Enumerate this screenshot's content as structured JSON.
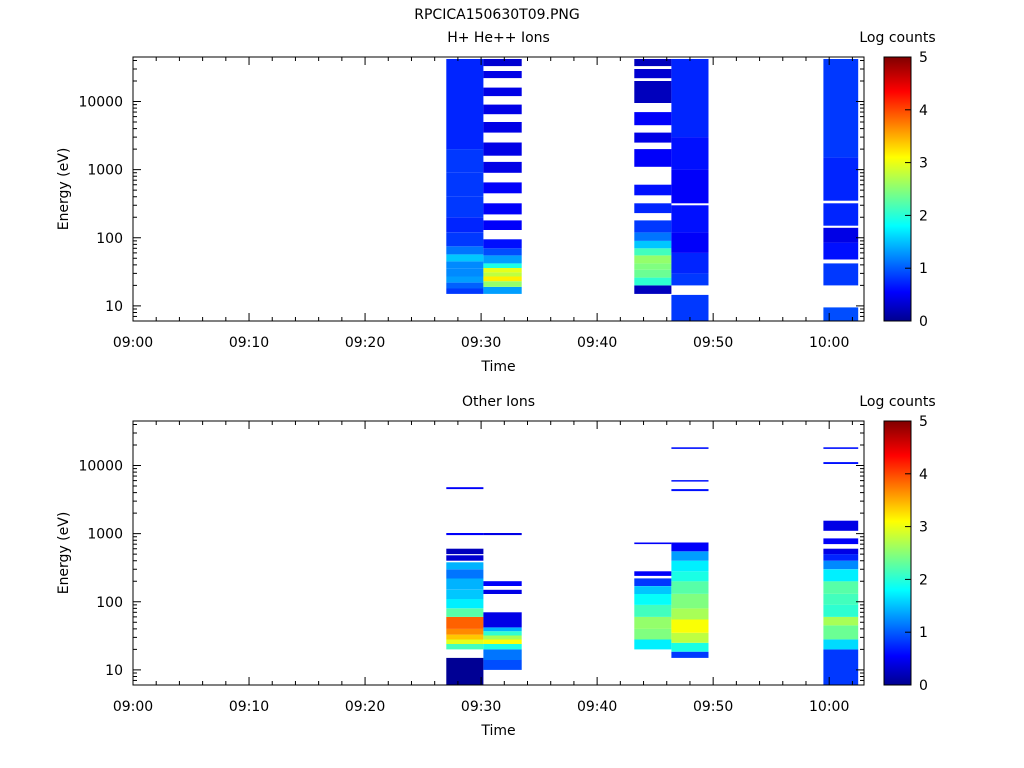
{
  "page_title": "RPCICA150630T09.PNG",
  "chart_data": [
    {
      "type": "heatmap",
      "title": "H+ He++ Ions",
      "xlabel": "Time",
      "ylabel": "Energy (eV)",
      "x_ticks": [
        "09:00",
        "09:10",
        "09:20",
        "09:30",
        "09:40",
        "09:50",
        "10:00"
      ],
      "x_range_minutes": [
        0,
        63
      ],
      "y_scale": "log",
      "y_ticks": [
        "10",
        "100",
        "1000",
        "10000"
      ],
      "y_range": [
        6,
        45000
      ],
      "colorbar": {
        "label": "Log counts",
        "range": [
          0,
          5
        ],
        "ticks": [
          "0",
          "1",
          "2",
          "3",
          "4",
          "5"
        ]
      },
      "columns": [
        {
          "t0": 27.0,
          "t1": 30.2,
          "cells": [
            [
              15,
              18,
              0.9
            ],
            [
              18,
              22,
              1.1
            ],
            [
              22,
              27,
              1.4
            ],
            [
              27,
              35,
              1.3
            ],
            [
              35,
              45,
              1.3
            ],
            [
              45,
              57,
              1.6
            ],
            [
              57,
              75,
              1.2
            ],
            [
              75,
              120,
              0.9
            ],
            [
              120,
              200,
              0.8
            ],
            [
              200,
              400,
              0.9
            ],
            [
              400,
              900,
              0.9
            ],
            [
              900,
              2000,
              0.9
            ],
            [
              2000,
              5000,
              0.8
            ],
            [
              5000,
              15000,
              0.8
            ],
            [
              15000,
              42000,
              0.8
            ]
          ]
        },
        {
          "t0": 30.2,
          "t1": 33.5,
          "cells": [
            [
              15,
              19,
              1.4
            ],
            [
              19,
              23,
              2.6
            ],
            [
              23,
              27,
              3.2
            ],
            [
              27,
              31,
              2.8
            ],
            [
              31,
              36,
              3.0
            ],
            [
              36,
              42,
              2.0
            ],
            [
              42,
              55,
              1.4
            ],
            [
              55,
              70,
              1.0
            ],
            [
              70,
              95,
              0.7
            ],
            [
              130,
              180,
              0.6
            ],
            [
              220,
              320,
              0.6
            ],
            [
              450,
              650,
              0.6
            ],
            [
              900,
              1300,
              0.5
            ],
            [
              1600,
              2500,
              0.5
            ],
            [
              3500,
              5000,
              0.5
            ],
            [
              6500,
              9000,
              0.5
            ],
            [
              12000,
              16000,
              0.5
            ],
            [
              22000,
              28000,
              0.5
            ],
            [
              33000,
              42000,
              0.4
            ]
          ]
        },
        {
          "t0": 43.2,
          "t1": 46.4,
          "cells": [
            [
              15,
              20,
              0.3
            ],
            [
              20,
              26,
              2.1
            ],
            [
              26,
              34,
              2.4
            ],
            [
              34,
              42,
              2.5
            ],
            [
              42,
              55,
              2.6
            ],
            [
              55,
              70,
              2.2
            ],
            [
              70,
              90,
              1.6
            ],
            [
              90,
              120,
              1.2
            ],
            [
              120,
              180,
              0.9
            ],
            [
              230,
              320,
              0.8
            ],
            [
              420,
              600,
              0.7
            ],
            [
              1100,
              2000,
              0.6
            ],
            [
              2500,
              3500,
              0.5
            ],
            [
              4500,
              7000,
              0.6
            ],
            [
              9500,
              20000,
              0.3
            ],
            [
              22000,
              30000,
              0.4
            ],
            [
              33000,
              42000,
              0.3
            ]
          ]
        },
        {
          "t0": 46.4,
          "t1": 49.6,
          "cells": [
            [
              6,
              14.5,
              0.9
            ],
            [
              20,
              30,
              0.9
            ],
            [
              30,
              60,
              0.8
            ],
            [
              60,
              120,
              0.6
            ],
            [
              120,
              300,
              0.7
            ],
            [
              320,
              1000,
              0.6
            ],
            [
              1000,
              3000,
              0.7
            ],
            [
              3000,
              10000,
              0.8
            ],
            [
              10000,
              42000,
              0.8
            ]
          ]
        },
        {
          "t0": 59.5,
          "t1": 62.5,
          "cells": [
            [
              6,
              9.5,
              1.0
            ],
            [
              20,
              42,
              0.9
            ],
            [
              48,
              85,
              0.7
            ],
            [
              85,
              140,
              0.5
            ],
            [
              150,
              320,
              0.8
            ],
            [
              350,
              1500,
              0.8
            ],
            [
              1500,
              5000,
              0.9
            ],
            [
              5000,
              15000,
              0.9
            ],
            [
              15000,
              42000,
              0.9
            ]
          ]
        }
      ]
    },
    {
      "type": "heatmap",
      "title": "Other Ions",
      "xlabel": "Time",
      "ylabel": "Energy (eV)",
      "x_ticks": [
        "09:00",
        "09:10",
        "09:20",
        "09:30",
        "09:40",
        "09:50",
        "10:00"
      ],
      "x_range_minutes": [
        0,
        63
      ],
      "y_scale": "log",
      "y_ticks": [
        "10",
        "100",
        "1000",
        "10000"
      ],
      "y_range": [
        6,
        45000
      ],
      "colorbar": {
        "label": "Log counts",
        "range": [
          0,
          5
        ],
        "ticks": [
          "0",
          "1",
          "2",
          "3",
          "4",
          "5"
        ]
      },
      "columns": [
        {
          "t0": 27.0,
          "t1": 30.2,
          "cells": [
            [
              6,
              15,
              0.1
            ],
            [
              20,
              24,
              2.2
            ],
            [
              24,
              28,
              3.0
            ],
            [
              28,
              33,
              3.4
            ],
            [
              33,
              40,
              3.7
            ],
            [
              40,
              48,
              3.9
            ],
            [
              48,
              60,
              3.9
            ],
            [
              60,
              80,
              2.3
            ],
            [
              80,
              110,
              1.8
            ],
            [
              110,
              150,
              1.6
            ],
            [
              150,
              220,
              1.5
            ],
            [
              220,
              300,
              1.2
            ],
            [
              300,
              380,
              1.5
            ],
            [
              400,
              480,
              0.4
            ],
            [
              500,
              600,
              0.3
            ],
            [
              950,
              1020,
              0.6
            ],
            [
              4500,
              4800,
              0.6
            ]
          ]
        },
        {
          "t0": 30.2,
          "t1": 33.5,
          "cells": [
            [
              10,
              14,
              1.0
            ],
            [
              14,
              20,
              1.2
            ],
            [
              20,
              24,
              2.0
            ],
            [
              24,
              28,
              3.1
            ],
            [
              28,
              32,
              2.7
            ],
            [
              32,
              37,
              2.1
            ],
            [
              37,
              42,
              1.5
            ],
            [
              42,
              70,
              0.5
            ],
            [
              130,
              150,
              0.5
            ],
            [
              170,
              200,
              0.6
            ],
            [
              950,
              1020,
              0.5
            ]
          ]
        },
        {
          "t0": 43.2,
          "t1": 46.4,
          "cells": [
            [
              20,
              28,
              1.8
            ],
            [
              28,
              40,
              2.5
            ],
            [
              40,
              60,
              2.6
            ],
            [
              60,
              90,
              2.2
            ],
            [
              90,
              130,
              1.9
            ],
            [
              130,
              170,
              1.6
            ],
            [
              170,
              220,
              0.9
            ],
            [
              240,
              280,
              0.6
            ],
            [
              700,
              740,
              0.6
            ]
          ]
        },
        {
          "t0": 46.4,
          "t1": 49.6,
          "cells": [
            [
              15,
              18.5,
              0.9
            ],
            [
              18.5,
              25,
              2.0
            ],
            [
              25,
              35,
              2.8
            ],
            [
              35,
              55,
              3.1
            ],
            [
              55,
              80,
              2.7
            ],
            [
              80,
              130,
              2.5
            ],
            [
              130,
              200,
              2.3
            ],
            [
              200,
              280,
              2.0
            ],
            [
              280,
              400,
              1.8
            ],
            [
              400,
              550,
              1.4
            ],
            [
              550,
              740,
              0.6
            ],
            [
              4200,
              4500,
              0.7
            ],
            [
              5800,
              6100,
              0.7
            ],
            [
              17500,
              18500,
              0.7
            ]
          ]
        },
        {
          "t0": 59.5,
          "t1": 62.5,
          "cells": [
            [
              6,
              20,
              0.9
            ],
            [
              20,
              28,
              1.7
            ],
            [
              28,
              45,
              2.4
            ],
            [
              45,
              60,
              2.7
            ],
            [
              60,
              90,
              2.1
            ],
            [
              90,
              130,
              2.2
            ],
            [
              130,
              200,
              2.3
            ],
            [
              200,
              300,
              1.8
            ],
            [
              300,
              400,
              1.3
            ],
            [
              400,
              500,
              0.8
            ],
            [
              500,
              600,
              0.5
            ],
            [
              700,
              850,
              0.6
            ],
            [
              1100,
              1550,
              0.5
            ],
            [
              10500,
              11200,
              0.7
            ],
            [
              17500,
              18500,
              0.7
            ]
          ]
        }
      ]
    }
  ]
}
